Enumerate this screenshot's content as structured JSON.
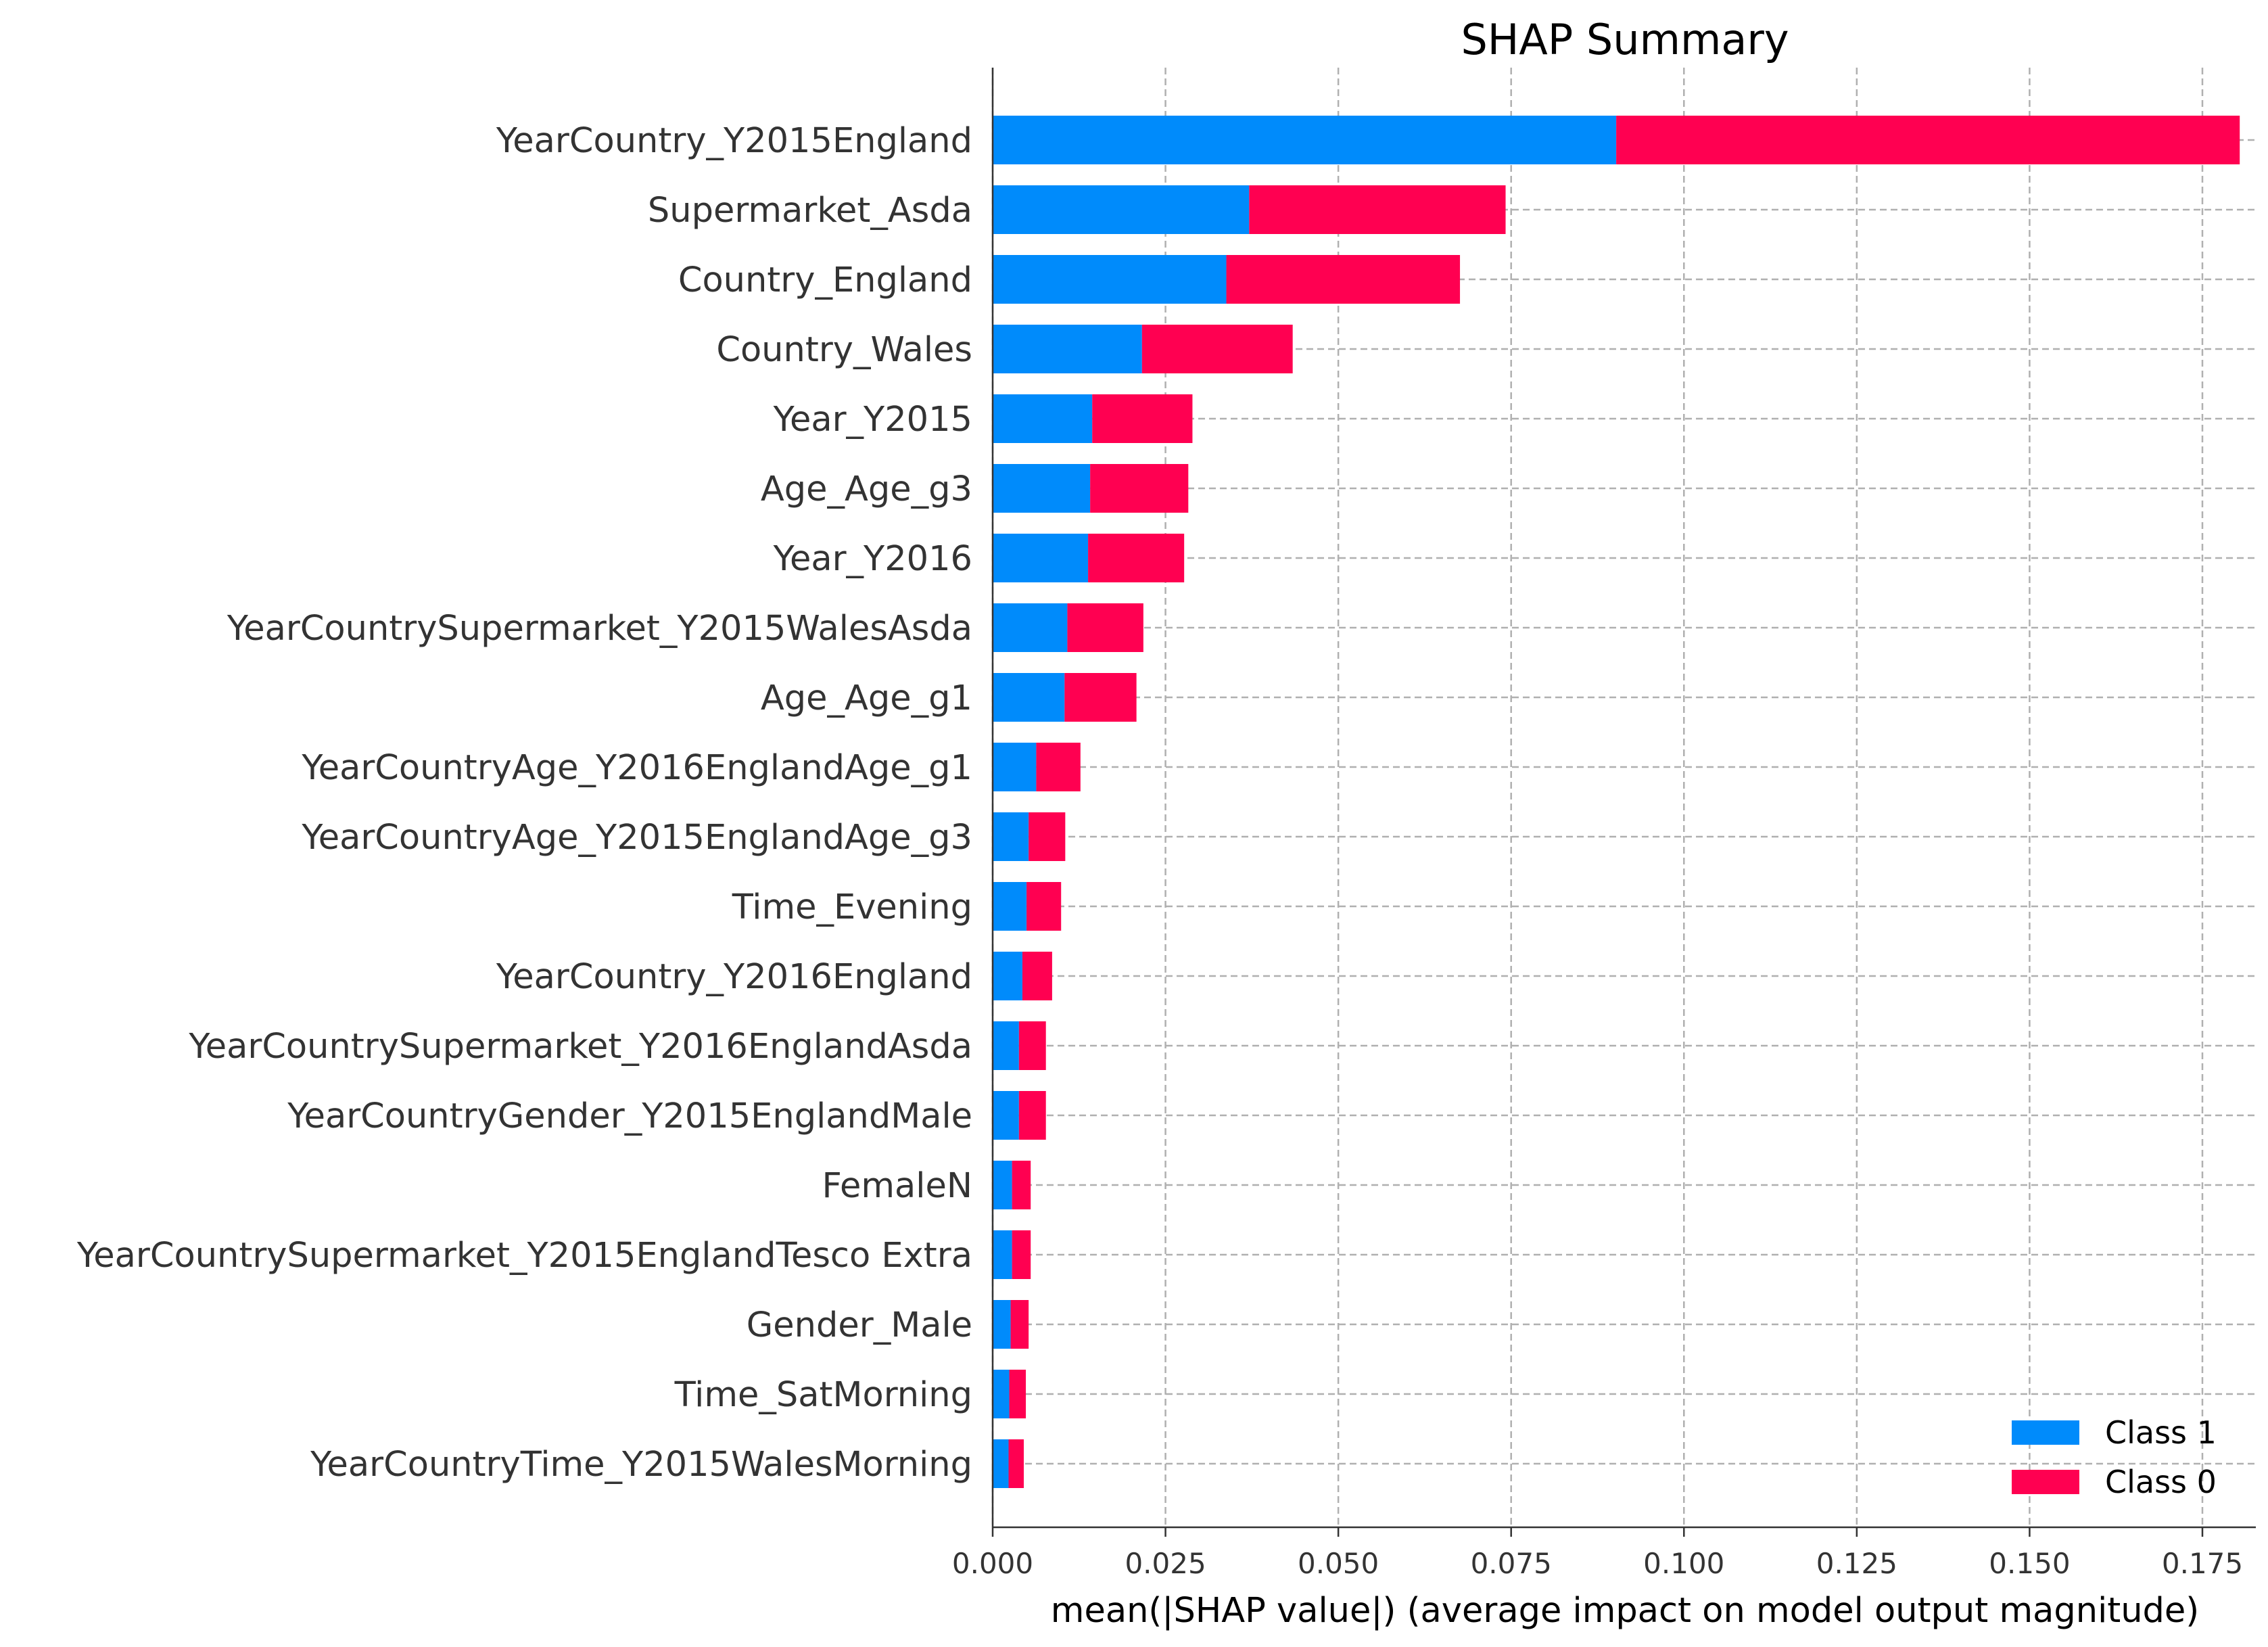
{
  "chart_data": {
    "type": "bar",
    "orientation": "horizontal",
    "stacked": true,
    "title": "SHAP Summary",
    "xlabel": "mean(|SHAP value|) (average impact on model output magnitude)",
    "ylabel": "",
    "xlim": [
      0,
      0.189
    ],
    "xticks": [
      0.0,
      0.025,
      0.05,
      0.075,
      0.1,
      0.125,
      0.15,
      0.175
    ],
    "xtick_labels": [
      "0.000",
      "0.025",
      "0.050",
      "0.075",
      "0.100",
      "0.125",
      "0.150",
      "0.175"
    ],
    "grid": true,
    "legend_position": "bottom-right",
    "categories": [
      "YearCountry_Y2015England",
      "Supermarket_Asda",
      "Country_England",
      "Country_Wales",
      "Year_Y2015",
      "Age_Age_g3",
      "Year_Y2016",
      "YearCountrySupermarket_Y2015WalesAsda",
      "Age_Age_g1",
      "YearCountryAge_Y2016EnglandAge_g1",
      "YearCountryAge_Y2015EnglandAge_g3",
      "Time_Evening",
      "YearCountry_Y2016England",
      "YearCountrySupermarket_Y2016EnglandAsda",
      "YearCountryGender_Y2015EnglandMale",
      "FemaleN",
      "YearCountrySupermarket_Y2015EnglandTesco Extra",
      "Gender_Male",
      "Time_SatMorning",
      "YearCountryTime_Y2015WalesMorning"
    ],
    "series": [
      {
        "name": "Class 1",
        "color": "#008bfb",
        "values": [
          0.0902,
          0.0371,
          0.0338,
          0.0216,
          0.0144,
          0.0141,
          0.0138,
          0.0108,
          0.0104,
          0.0063,
          0.0052,
          0.0049,
          0.0043,
          0.0038,
          0.0038,
          0.0028,
          0.0028,
          0.0026,
          0.0024,
          0.0023
        ]
      },
      {
        "name": "Class 0",
        "color": "#ff0051",
        "values": [
          0.0902,
          0.0371,
          0.0338,
          0.0218,
          0.0145,
          0.0142,
          0.0139,
          0.011,
          0.0104,
          0.0064,
          0.0053,
          0.005,
          0.0043,
          0.0039,
          0.0039,
          0.0027,
          0.0027,
          0.0026,
          0.0024,
          0.0022
        ]
      }
    ],
    "legend_order": [
      "Class 1",
      "Class 0"
    ]
  }
}
